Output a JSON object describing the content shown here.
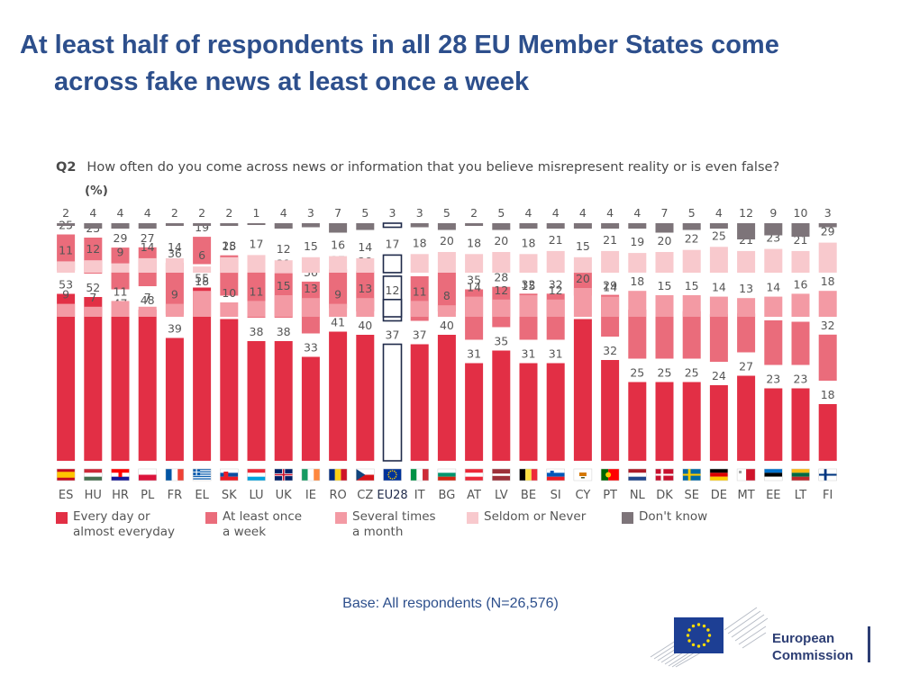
{
  "slide": {
    "title_line1": "At least half of respondents in all 28 EU Member States come",
    "title_line2": "across fake news at least once a week",
    "question_code": "Q2",
    "question_text": "How often do you come across news or information that you believe misrepresent reality or is even false?",
    "unit": "(%)",
    "base_note": "Base: All respondents (N=26,576)",
    "logo_text_line1": "European",
    "logo_text_line2": "Commission"
  },
  "colors": {
    "title": "#2d4f8c",
    "every_day": "#e22f45",
    "once_a_week": "#ea6c7b",
    "several_month": "#f39aa4",
    "seldom_never": "#f8c9cd",
    "dont_know": "#7d7479",
    "highlight_border": "#1f2a4a"
  },
  "chart_data": {
    "type": "bar",
    "stacked": true,
    "unit": "%",
    "ylim": [
      0,
      100
    ],
    "categories": [
      "ES",
      "HU",
      "HR",
      "PL",
      "FR",
      "EL",
      "SK",
      "LU",
      "UK",
      "IE",
      "RO",
      "CZ",
      "EU28",
      "IT",
      "BG",
      "AT",
      "LV",
      "BE",
      "SI",
      "CY",
      "PT",
      "NL",
      "DK",
      "SE",
      "DE",
      "MT",
      "EE",
      "LT",
      "FI"
    ],
    "highlight": "EU28",
    "flags": [
      "es",
      "hu",
      "hr",
      "pl",
      "fr",
      "el",
      "sk",
      "lu",
      "uk",
      "ie",
      "ro",
      "cz",
      "eu",
      "it",
      "bg",
      "at",
      "lv",
      "be",
      "si",
      "cy",
      "pt",
      "nl",
      "dk",
      "se",
      "de",
      "mt",
      "ee",
      "lt",
      "fi"
    ],
    "series": [
      {
        "name": "Every day or almost everyday",
        "color_key": "every_day",
        "values": [
          53,
          52,
          47,
          48,
          39,
          55,
          45,
          38,
          38,
          33,
          41,
          40,
          37,
          37,
          40,
          31,
          35,
          31,
          31,
          45,
          32,
          25,
          25,
          25,
          24,
          27,
          23,
          23,
          18
        ]
      },
      {
        "name": "At least once a week",
        "color_key": "once_a_week",
        "values": [
          25,
          25,
          29,
          27,
          36,
          19,
          28,
          33,
          31,
          36,
          27,
          28,
          31,
          31,
          27,
          35,
          28,
          32,
          32,
          16,
          29,
          34,
          33,
          33,
          33,
          27,
          31,
          30,
          32
        ]
      },
      {
        "name": "Several times a month",
        "color_key": "several_month",
        "values": [
          9,
          7,
          11,
          7,
          9,
          18,
          10,
          11,
          15,
          13,
          9,
          13,
          12,
          11,
          8,
          14,
          12,
          15,
          12,
          20,
          14,
          18,
          15,
          15,
          14,
          13,
          14,
          16,
          18
        ]
      },
      {
        "name": "Seldom or Never",
        "color_key": "seldom_never",
        "values": [
          11,
          12,
          9,
          14,
          14,
          6,
          15,
          17,
          12,
          15,
          16,
          14,
          17,
          18,
          20,
          18,
          20,
          18,
          21,
          15,
          21,
          19,
          20,
          22,
          25,
          21,
          23,
          21,
          29
        ]
      },
      {
        "name": "Don't know",
        "color_key": "dont_know",
        "values": [
          2,
          4,
          4,
          4,
          2,
          2,
          2,
          1,
          4,
          3,
          7,
          5,
          3,
          3,
          5,
          2,
          5,
          4,
          4,
          4,
          4,
          4,
          7,
          5,
          4,
          12,
          9,
          10,
          3
        ]
      }
    ]
  },
  "legend": [
    {
      "label": "Every day or\nalmost everyday",
      "color_key": "every_day"
    },
    {
      "label": "At least once\na week",
      "color_key": "once_a_week"
    },
    {
      "label": "Several times\na month",
      "color_key": "several_month"
    },
    {
      "label": "Seldom or Never",
      "color_key": "seldom_never"
    },
    {
      "label": "Don't know",
      "color_key": "dont_know"
    }
  ]
}
